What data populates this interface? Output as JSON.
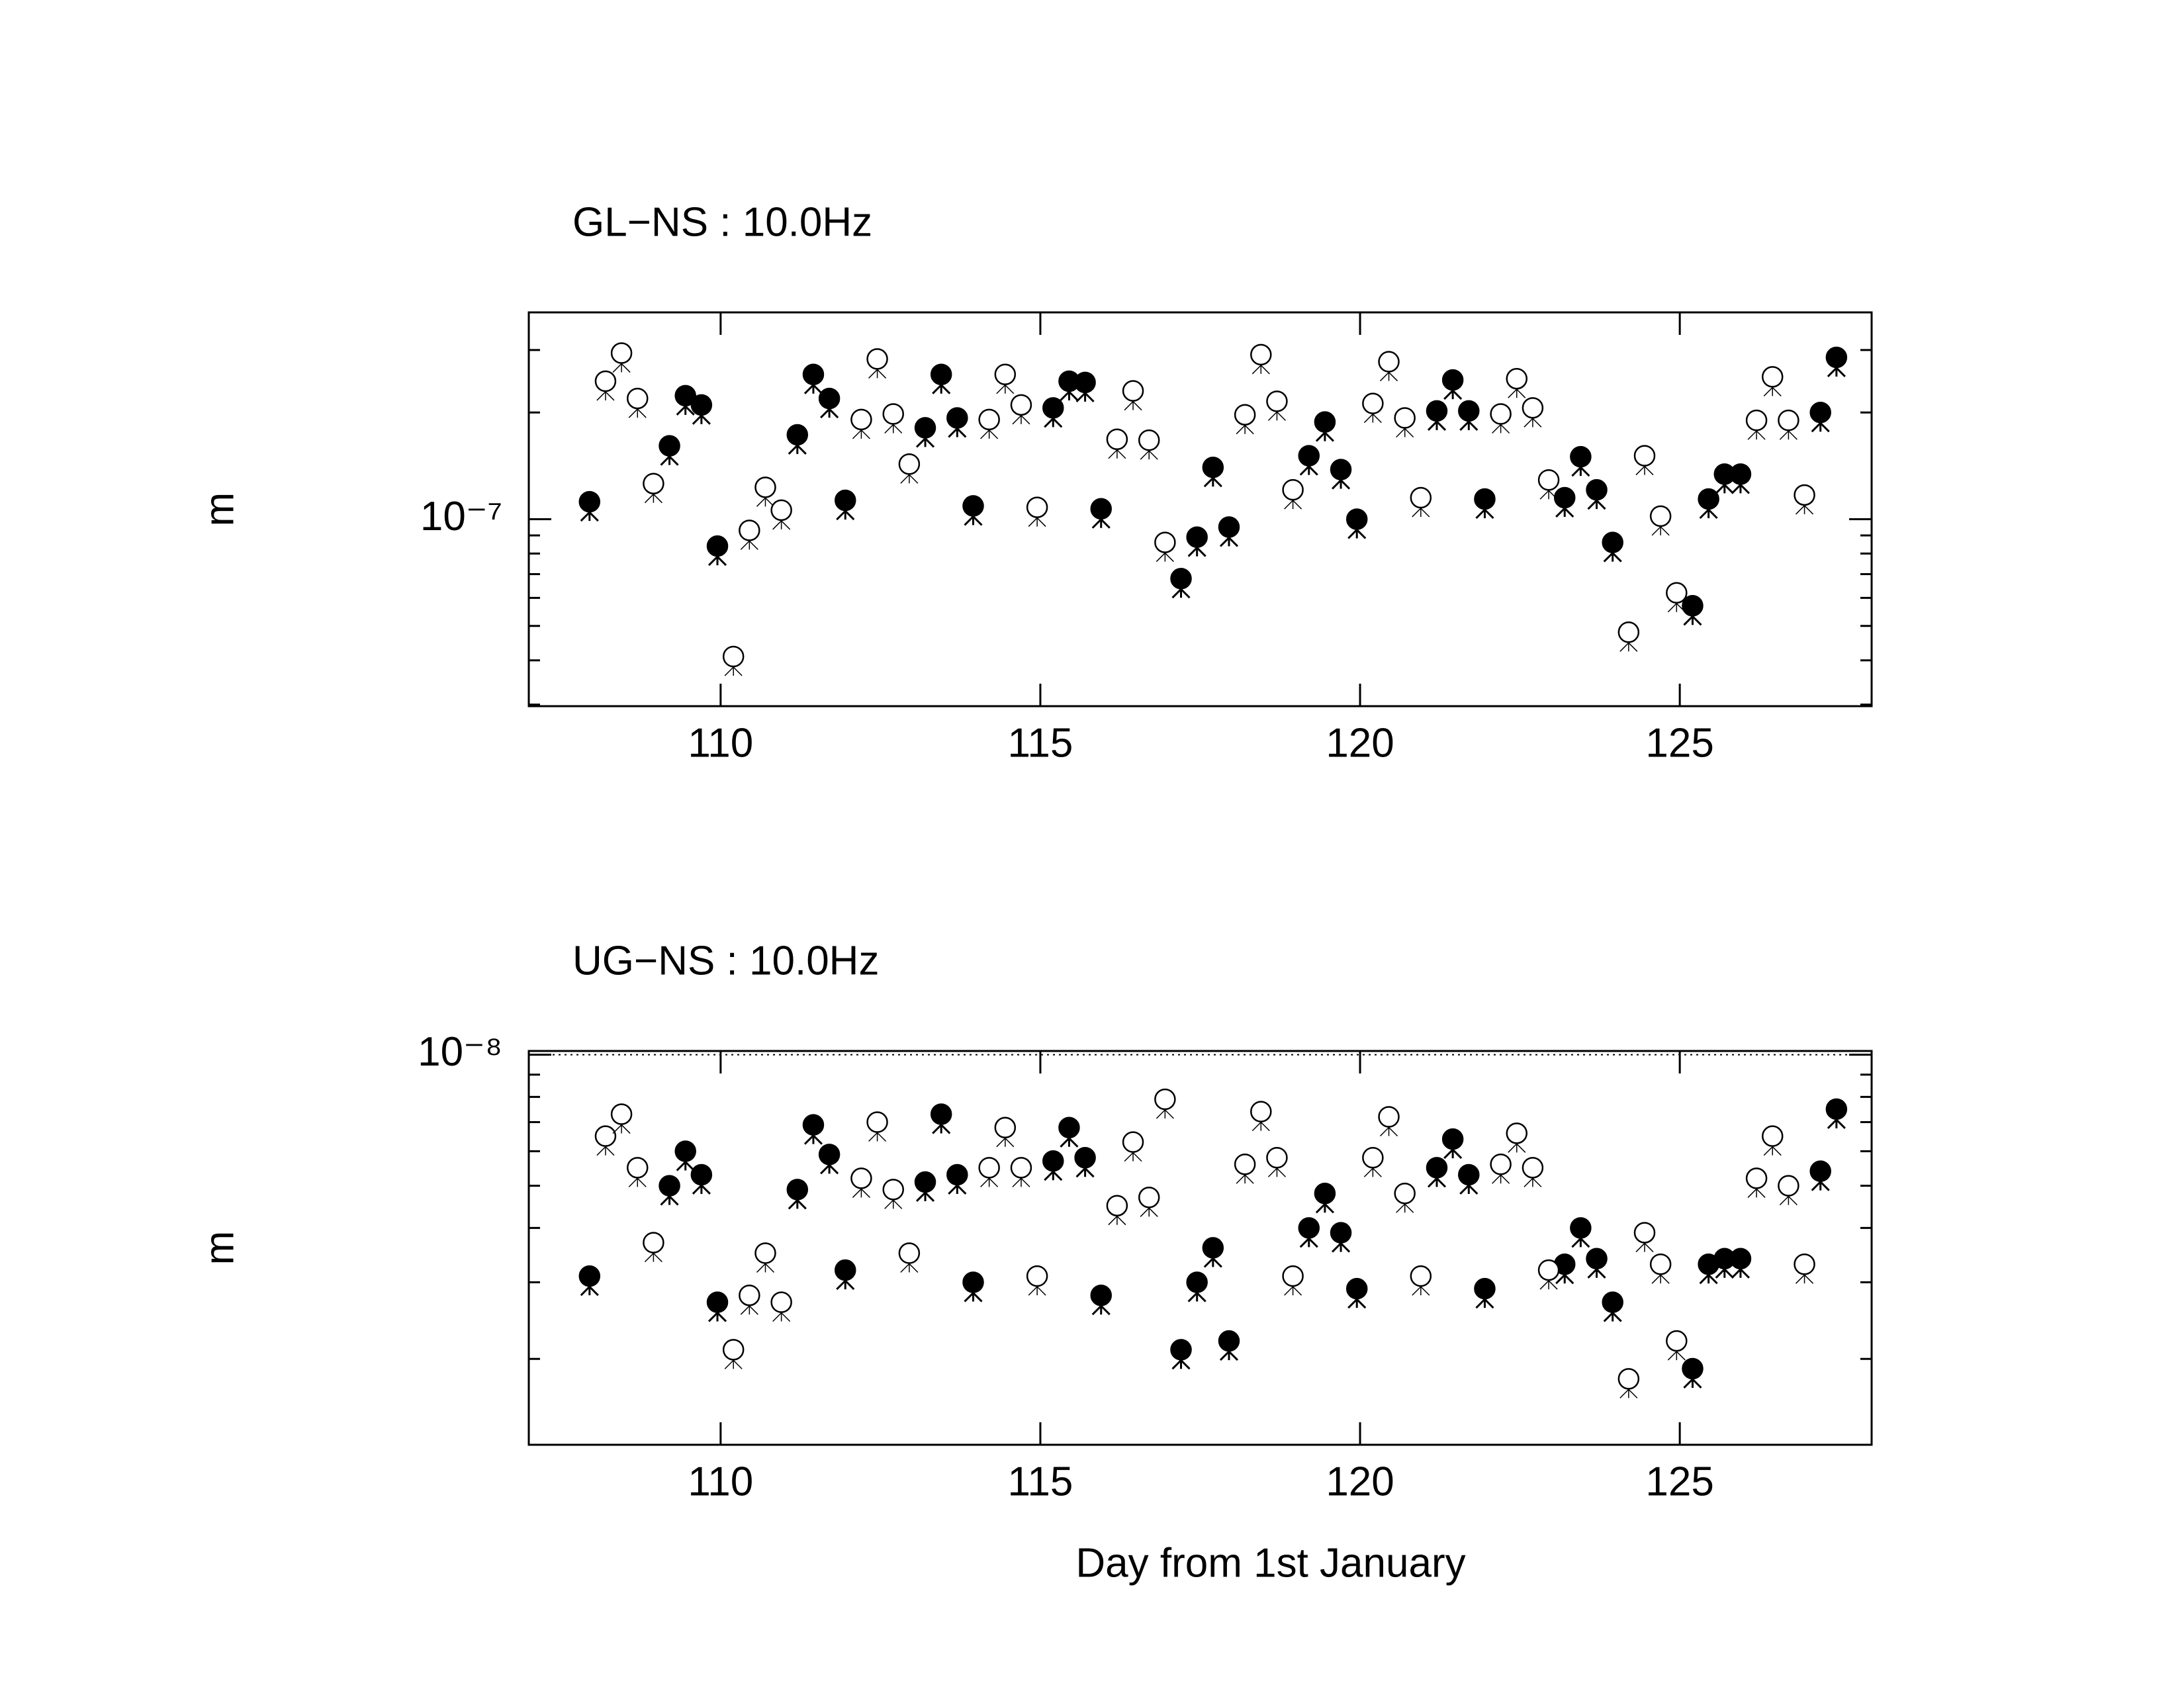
{
  "chart_data": [
    {
      "type": "scatter",
      "title": "GL−NS : 10.0Hz",
      "ylabel": "m",
      "xlim": [
        107,
        128
      ],
      "xticks": [
        110,
        115,
        120,
        125
      ],
      "ylim": [
        2.97e-08,
        3.83e-07
      ],
      "log_y": true,
      "yticks": [
        {
          "value": 1e-07,
          "label": "10⁻⁷"
        }
      ],
      "yminorticks": [
        3e-08,
        4e-08,
        5e-08,
        6e-08,
        7e-08,
        8e-08,
        9e-08,
        2e-07,
        3e-07
      ],
      "grid": false,
      "series": [
        {
          "marker": "filled",
          "color": "#000000",
          "x": [
            107.95,
            109.2,
            109.45,
            109.7,
            109.95,
            111.2,
            111.45,
            111.7,
            111.95,
            113.2,
            113.45,
            113.7,
            113.95,
            115.2,
            115.45,
            115.7,
            115.95,
            117.2,
            117.45,
            117.7,
            117.95,
            119.2,
            119.45,
            119.7,
            119.95,
            121.2,
            121.45,
            121.7,
            121.95,
            123.2,
            123.45,
            123.7,
            123.95,
            125.2,
            125.45,
            125.7,
            125.95,
            127.2,
            127.45
          ],
          "values": [
            1.12e-07,
            1.61e-07,
            2.23e-07,
            2.1e-07,
            8.4e-08,
            1.73e-07,
            2.56e-07,
            2.19e-07,
            1.13e-07,
            1.81e-07,
            2.56e-07,
            1.93e-07,
            1.09e-07,
            2.06e-07,
            2.45e-07,
            2.43e-07,
            1.07e-07,
            6.8e-08,
            8.9e-08,
            1.4e-07,
            9.5e-08,
            1.51e-07,
            1.88e-07,
            1.38e-07,
            1e-07,
            2.02e-07,
            2.47e-07,
            2.02e-07,
            1.14e-07,
            1.15e-07,
            1.5e-07,
            1.21e-07,
            8.6e-08,
            5.7e-08,
            1.14e-07,
            1.34e-07,
            1.34e-07,
            2e-07,
            2.86e-07
          ]
        },
        {
          "marker": "open",
          "color": "#000000",
          "x": [
            108.2,
            108.45,
            108.7,
            108.95,
            110.2,
            110.45,
            110.7,
            110.95,
            112.2,
            112.45,
            112.7,
            112.95,
            114.2,
            114.45,
            114.7,
            114.95,
            116.2,
            116.45,
            116.7,
            116.95,
            118.2,
            118.45,
            118.7,
            118.95,
            120.2,
            120.45,
            120.7,
            120.95,
            122.2,
            122.45,
            122.7,
            122.95,
            124.2,
            124.45,
            124.7,
            124.95,
            126.2,
            126.45,
            126.7,
            126.95
          ],
          "values": [
            2.45e-07,
            2.94e-07,
            2.19e-07,
            1.26e-07,
            4.1e-08,
            9.3e-08,
            1.23e-07,
            1.06e-07,
            1.91e-07,
            2.83e-07,
            1.98e-07,
            1.43e-07,
            1.91e-07,
            2.56e-07,
            2.1e-07,
            1.08e-07,
            1.68e-07,
            2.3e-07,
            1.67e-07,
            8.6e-08,
            1.97e-07,
            2.91e-07,
            2.15e-07,
            1.21e-07,
            2.12e-07,
            2.78e-07,
            1.93e-07,
            1.15e-07,
            1.98e-07,
            2.49e-07,
            2.06e-07,
            1.29e-07,
            4.8e-08,
            1.51e-07,
            1.02e-07,
            6.2e-08,
            1.9e-07,
            2.52e-07,
            1.9e-07,
            1.17e-07
          ]
        }
      ]
    },
    {
      "type": "scatter",
      "title": "UG−NS : 10.0Hz",
      "ylabel": "m",
      "xlabel": "Day from 1st January",
      "xlim": [
        107,
        128
      ],
      "xticks": [
        110,
        115,
        120,
        125
      ],
      "ylim": [
        1.27e-09,
        1.02e-08
      ],
      "log_y": true,
      "yticks": [
        {
          "value": 1e-08,
          "label": "10⁻⁸"
        }
      ],
      "yminorticks": [
        2e-09,
        3e-09,
        4e-09,
        5e-09,
        6e-09,
        7e-09,
        8e-09,
        9e-09
      ],
      "grid": true,
      "series": [
        {
          "marker": "filled",
          "color": "#000000",
          "x": [
            107.95,
            109.2,
            109.45,
            109.7,
            109.95,
            111.2,
            111.45,
            111.7,
            111.95,
            113.2,
            113.45,
            113.7,
            113.95,
            115.2,
            115.45,
            115.7,
            115.95,
            117.2,
            117.45,
            117.7,
            117.95,
            119.2,
            119.45,
            119.7,
            119.95,
            121.2,
            121.45,
            121.7,
            121.95,
            123.2,
            123.45,
            123.7,
            123.95,
            125.2,
            125.45,
            125.7,
            125.95,
            127.2,
            127.45
          ],
          "values": [
            3.1e-09,
            5e-09,
            6e-09,
            5.3e-09,
            2.7e-09,
            4.9e-09,
            6.9e-09,
            5.9e-09,
            3.2e-09,
            5.1e-09,
            7.3e-09,
            5.3e-09,
            3e-09,
            5.7e-09,
            6.8e-09,
            5.8e-09,
            2.8e-09,
            2.1e-09,
            3e-09,
            3.6e-09,
            2.2e-09,
            4e-09,
            4.8e-09,
            3.9e-09,
            2.9e-09,
            5.5e-09,
            6.4e-09,
            5.3e-09,
            2.9e-09,
            3.3e-09,
            4e-09,
            3.4e-09,
            2.7e-09,
            1.9e-09,
            3.3e-09,
            3.4e-09,
            3.4e-09,
            5.4e-09,
            7.5e-09
          ]
        },
        {
          "marker": "open",
          "color": "#000000",
          "x": [
            108.2,
            108.45,
            108.7,
            108.95,
            110.2,
            110.45,
            110.7,
            110.95,
            112.2,
            112.45,
            112.7,
            112.95,
            114.2,
            114.45,
            114.7,
            114.95,
            116.2,
            116.45,
            116.7,
            116.95,
            118.2,
            118.45,
            118.7,
            118.95,
            120.2,
            120.45,
            120.7,
            120.95,
            122.2,
            122.45,
            122.7,
            122.95,
            124.2,
            124.45,
            124.7,
            124.95,
            126.2,
            126.45,
            126.7,
            126.95
          ],
          "values": [
            6.5e-09,
            7.3e-09,
            5.5e-09,
            3.7e-09,
            2.1e-09,
            2.8e-09,
            3.5e-09,
            2.7e-09,
            5.2e-09,
            7e-09,
            4.9e-09,
            3.5e-09,
            5.5e-09,
            6.8e-09,
            5.5e-09,
            3.1e-09,
            4.5e-09,
            6.3e-09,
            4.7e-09,
            7.9e-09,
            5.6e-09,
            7.4e-09,
            5.8e-09,
            3.1e-09,
            5.8e-09,
            7.2e-09,
            4.8e-09,
            3.1e-09,
            5.6e-09,
            6.6e-09,
            5.5e-09,
            3.2e-09,
            1.8e-09,
            3.9e-09,
            3.3e-09,
            2.2e-09,
            5.2e-09,
            6.5e-09,
            5e-09,
            3.3e-09
          ]
        }
      ]
    }
  ]
}
